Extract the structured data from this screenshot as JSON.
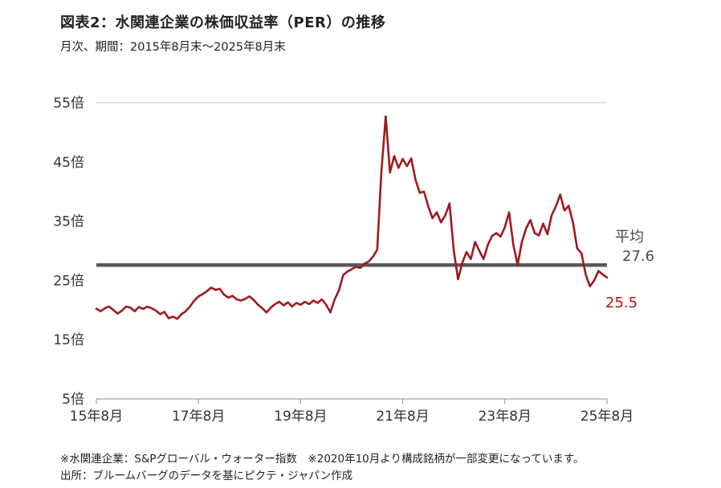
{
  "header": {
    "title": "図表2：水関連企業の株価収益率（PER）の推移",
    "subtitle": "月次、期間：2015年8月末～2025年8月末"
  },
  "chart_data": {
    "type": "line",
    "title": "図表2：水関連企業の株価収益率（PER）の推移",
    "subtitle": "月次、期間：2015年8月末～2025年8月末",
    "x_ticks": [
      "15年8月",
      "17年8月",
      "19年8月",
      "21年8月",
      "23年8月",
      "25年8月"
    ],
    "y_ticks": [
      "5倍",
      "15倍",
      "25倍",
      "35倍",
      "45倍",
      "55倍"
    ],
    "y_tick_values": [
      5,
      15,
      25,
      35,
      45,
      55
    ],
    "ylim": [
      5,
      55
    ],
    "x_frequency": "monthly",
    "x_range_label": "2015年8月末～2025年8月末",
    "grid": "top-border-and-baseline-only",
    "series": [
      {
        "name": "水関連企業PER",
        "color": "#9e1a20",
        "values": [
          20.2,
          19.8,
          20.3,
          20.6,
          20.0,
          19.4,
          19.9,
          20.6,
          20.4,
          19.8,
          20.5,
          20.2,
          20.6,
          20.3,
          19.9,
          19.3,
          19.7,
          18.6,
          18.9,
          18.5,
          19.3,
          19.8,
          20.6,
          21.6,
          22.3,
          22.7,
          23.2,
          23.8,
          23.4,
          23.6,
          22.6,
          22.1,
          22.4,
          21.8,
          21.6,
          21.9,
          22.3,
          21.7,
          20.9,
          20.3,
          19.6,
          20.4,
          21.0,
          21.4,
          20.8,
          21.3,
          20.6,
          21.2,
          20.9,
          21.4,
          21.0,
          21.6,
          21.2,
          21.8,
          20.9,
          19.6,
          21.8,
          23.3,
          25.9,
          26.5,
          26.9,
          27.3,
          27.1,
          27.8,
          28.2,
          29.0,
          30.2,
          43.5,
          52.7,
          43.2,
          46.0,
          44.0,
          45.5,
          44.3,
          45.6,
          42.0,
          39.8,
          40.0,
          37.5,
          35.5,
          36.5,
          34.8,
          36.0,
          38.0,
          30.0,
          25.2,
          28.0,
          29.8,
          28.6,
          31.5,
          30.0,
          28.6,
          31.0,
          32.5,
          33.0,
          32.4,
          34.0,
          36.5,
          31.0,
          27.6,
          31.5,
          33.8,
          35.2,
          33.0,
          32.6,
          34.6,
          32.8,
          36.0,
          37.5,
          39.5,
          36.8,
          37.6,
          34.8,
          30.4,
          29.6,
          26.0,
          24.0,
          25.0,
          26.6,
          26.0,
          25.5
        ]
      }
    ],
    "average": {
      "label": "平均",
      "value": 27.6,
      "color": "#595959"
    },
    "last_value_label": {
      "text": "25.5",
      "color": "#b5121b"
    },
    "legend_position": "none"
  },
  "footnotes": {
    "line1": "※水関連企業：S&Pグローバル・ウォーター指数　※2020年10月より構成銘柄が一部変更になっています。",
    "line2": "出所：ブルームバーグのデータを基にピクテ・ジャパン作成"
  }
}
